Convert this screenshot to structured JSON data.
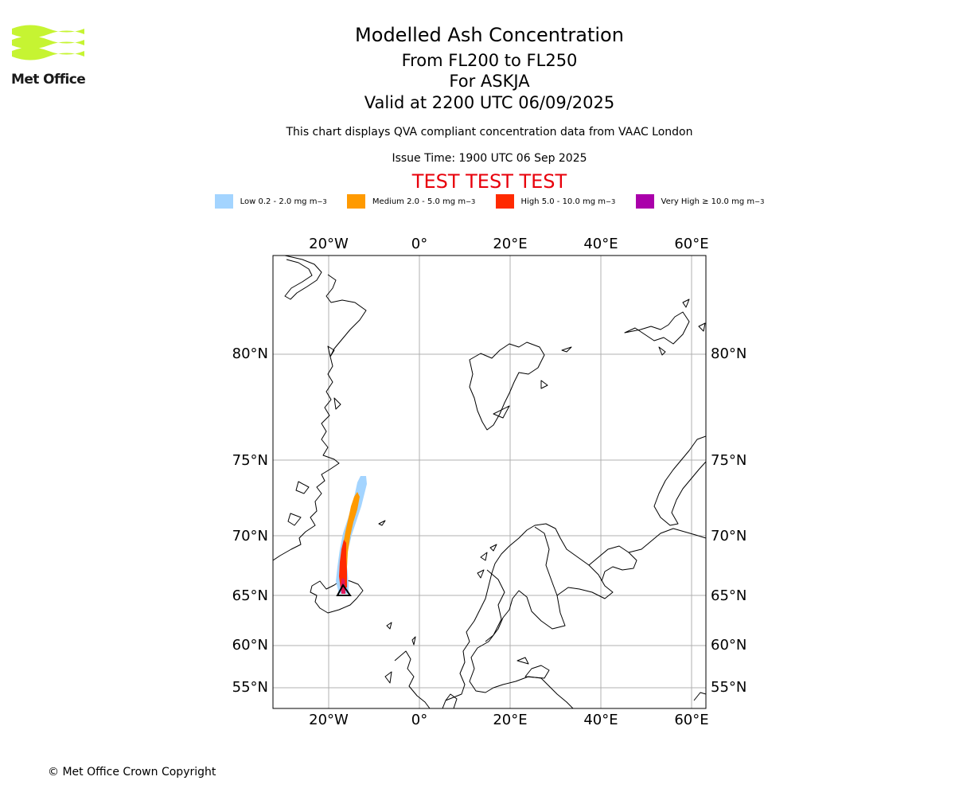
{
  "brand": {
    "name": "Met Office",
    "logo_color": "#c6f432"
  },
  "header": {
    "title": "Modelled Ash Concentration",
    "levels": "From FL200 to FL250",
    "volcano": "For ASKJA",
    "valid_time": "Valid at 2200 UTC 06/09/2025",
    "description": "This chart displays QVA compliant concentration data from VAAC London",
    "issue_time": "Issue Time: 1900 UTC 06 Sep 2025",
    "test_banner": "TEST TEST TEST",
    "test_color": "#e8000b"
  },
  "legend": {
    "unit": "mg m",
    "unit_exponent": "−3",
    "items": [
      {
        "label": "Low 0.2 - 2.0",
        "color": "#a3d4ff"
      },
      {
        "label": "Medium 2.0 - 5.0",
        "color": "#ff9a00"
      },
      {
        "label": "High 5.0 - 10.0",
        "color": "#ff2a00"
      },
      {
        "label": "Very High ≥ 10.0",
        "color": "#aa00aa"
      }
    ]
  },
  "map": {
    "longitude_ticks": [
      "20°W",
      "0°",
      "20°E",
      "40°E",
      "60°E"
    ],
    "latitude_ticks": [
      "80°N",
      "75°N",
      "70°N",
      "65°N",
      "60°N",
      "55°N"
    ],
    "gridline_color": "#b0b0b0",
    "coastline_color": "#000000",
    "volcano_marker": "volcano-triangle-icon"
  },
  "footer": {
    "copyright": "© Met Office Crown Copyright"
  }
}
